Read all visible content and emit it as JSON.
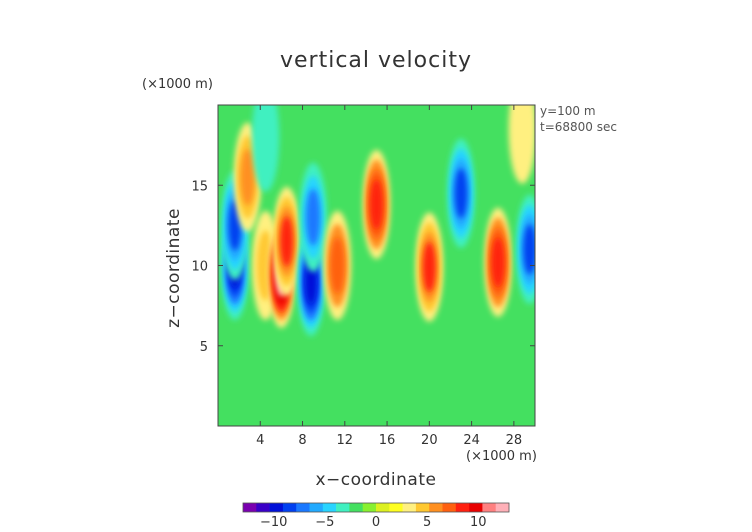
{
  "chart_data": {
    "type": "heatmap",
    "title": "vertical velocity",
    "xlabel": "x−coordinate",
    "ylabel": "z−coordinate",
    "x_unit": "(×1000 m)",
    "y_unit": "(×1000 m)",
    "annotations": [
      "y=100 m",
      "t=68800 sec"
    ],
    "xlim": [
      0,
      30
    ],
    "ylim": [
      0,
      20
    ],
    "x_ticks": [
      4,
      8,
      12,
      16,
      20,
      24,
      28
    ],
    "x_tick_labels": [
      "4",
      "8",
      "12",
      "16",
      "20",
      "24",
      "28"
    ],
    "y_ticks": [
      5,
      10,
      15
    ],
    "y_tick_labels": [
      "5",
      "10",
      "15"
    ],
    "colorbar": {
      "range": [
        -13,
        13
      ],
      "ticks": [
        -10,
        -5,
        0,
        5,
        10
      ],
      "tick_labels": [
        "−10",
        "−5",
        "0",
        "5",
        "10"
      ],
      "colors": [
        "#7a00b0",
        "#3a00c8",
        "#0010d8",
        "#0040f0",
        "#1a78ff",
        "#22aaff",
        "#28d4ff",
        "#40f0c0",
        "#44e060",
        "#88f030",
        "#dcf020",
        "#ffff20",
        "#fff080",
        "#ffc830",
        "#ff9020",
        "#ff6010",
        "#ff2010",
        "#e80000",
        "#ff8080",
        "#ffb0b8"
      ]
    },
    "features": [
      {
        "kind": "downdraft",
        "x": 1.6,
        "z": 10.0,
        "w": -10
      },
      {
        "kind": "downdraft",
        "x": 1.6,
        "z": 12.5,
        "w": -8
      },
      {
        "kind": "updraft",
        "x": 2.8,
        "z": 15.5,
        "w": 6
      },
      {
        "kind": "updraft",
        "x": 4.5,
        "z": 10.0,
        "w": 4
      },
      {
        "kind": "updraft",
        "x": 6.0,
        "z": 9.5,
        "w": 12
      },
      {
        "kind": "updraft",
        "x": 6.5,
        "z": 11.5,
        "w": 8
      },
      {
        "kind": "downdraft",
        "x": 8.8,
        "z": 9.0,
        "w": -10
      },
      {
        "kind": "downdraft",
        "x": 9.0,
        "z": 13.0,
        "w": -7
      },
      {
        "kind": "updraft",
        "x": 11.3,
        "z": 10.0,
        "w": 7
      },
      {
        "kind": "updraft",
        "x": 15.0,
        "z": 13.8,
        "w": 9
      },
      {
        "kind": "updraft",
        "x": 20.0,
        "z": 9.9,
        "w": 8
      },
      {
        "kind": "downdraft",
        "x": 23.0,
        "z": 14.5,
        "w": -8
      },
      {
        "kind": "updraft",
        "x": 26.5,
        "z": 10.2,
        "w": 9
      },
      {
        "kind": "downdraft",
        "x": 29.5,
        "z": 11.0,
        "w": -8
      },
      {
        "kind": "updraft",
        "x": 28.8,
        "z": 18.5,
        "w": 3
      },
      {
        "kind": "downdraft",
        "x": 4.5,
        "z": 18.0,
        "w": -3
      }
    ]
  }
}
